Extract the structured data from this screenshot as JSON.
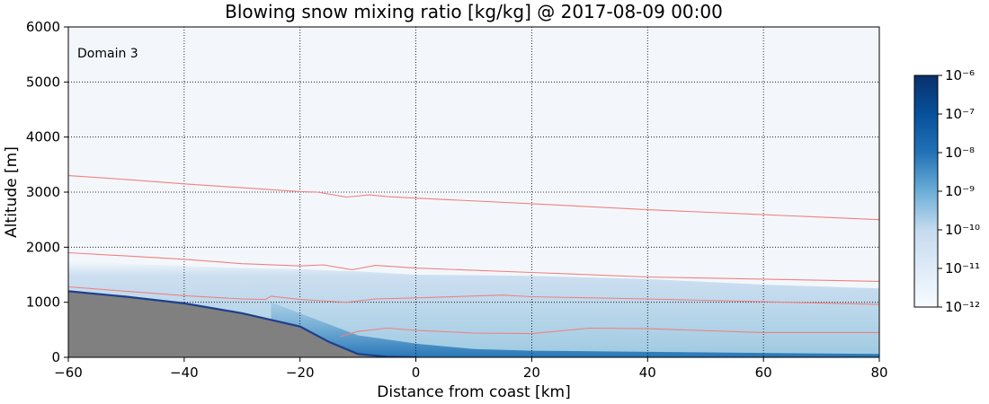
{
  "chart_data": {
    "type": "heatmap",
    "title": "Blowing snow mixing ratio [kg/kg] @   2017-08-09  00:00",
    "xlabel": "Distance from coast [km]",
    "ylabel": "Altitude [m]",
    "xlim": [
      -60,
      80
    ],
    "ylim": [
      0,
      6000
    ],
    "x_ticks": [
      -60,
      -40,
      -20,
      0,
      20,
      40,
      60,
      80
    ],
    "x_tick_labels": [
      "−60",
      "−40",
      "−20",
      "0",
      "20",
      "40",
      "60",
      "80"
    ],
    "y_ticks": [
      0,
      1000,
      2000,
      3000,
      4000,
      5000,
      6000
    ],
    "y_tick_labels": [
      "0",
      "1000",
      "2000",
      "3000",
      "4000",
      "5000",
      "6000"
    ],
    "grid": true,
    "annotation": "Domain 3",
    "colorbar": {
      "scale": "log",
      "min": 1e-12,
      "max": 1e-06,
      "exponents": [
        -12,
        -11,
        -10,
        -9,
        -8,
        -7,
        -6
      ],
      "tick_labels": [
        "10⁻¹²",
        "10⁻¹¹",
        "10⁻¹⁰",
        "10⁻⁹",
        "10⁻⁸",
        "10⁻⁷",
        "10⁻⁶"
      ],
      "color_low": "#f7fbff",
      "color_high": "#08306b"
    },
    "terrain": {
      "color": "#808080",
      "points": [
        [
          -60,
          1200
        ],
        [
          -50,
          1100
        ],
        [
          -40,
          980
        ],
        [
          -30,
          800
        ],
        [
          -20,
          560
        ],
        [
          -15,
          280
        ],
        [
          -10,
          60
        ],
        [
          -5,
          10
        ],
        [
          0,
          0
        ]
      ]
    },
    "snow_layer_top": [
      [
        -60,
        1750
      ],
      [
        -50,
        1700
      ],
      [
        -40,
        1660
      ],
      [
        -30,
        1620
      ],
      [
        -20,
        1600
      ],
      [
        -10,
        1560
      ],
      [
        0,
        1500
      ],
      [
        20,
        1480
      ],
      [
        40,
        1420
      ],
      [
        60,
        1320
      ],
      [
        80,
        1250
      ]
    ],
    "concentration_core": {
      "points": [
        [
          -25,
          1000
        ],
        [
          -15,
          600
        ],
        [
          -10,
          400
        ],
        [
          0,
          250
        ],
        [
          10,
          150
        ],
        [
          20,
          120
        ],
        [
          40,
          100
        ],
        [
          60,
          80
        ],
        [
          80,
          60
        ]
      ],
      "peak_exponent": -7.5
    },
    "contour_color": "#f08080",
    "contours": [
      [
        [
          -60,
          3300
        ],
        [
          -50,
          3230
        ],
        [
          -40,
          3150
        ],
        [
          -30,
          3080
        ],
        [
          -20,
          3010
        ],
        [
          -17,
          3000
        ],
        [
          -12,
          2910
        ],
        [
          -8,
          2950
        ],
        [
          -5,
          2920
        ],
        [
          0,
          2890
        ],
        [
          20,
          2790
        ],
        [
          40,
          2680
        ],
        [
          60,
          2590
        ],
        [
          80,
          2500
        ]
      ],
      [
        [
          -60,
          1900
        ],
        [
          -50,
          1840
        ],
        [
          -40,
          1780
        ],
        [
          -30,
          1700
        ],
        [
          -20,
          1660
        ],
        [
          -16,
          1680
        ],
        [
          -11,
          1590
        ],
        [
          -7,
          1670
        ],
        [
          0,
          1620
        ],
        [
          20,
          1540
        ],
        [
          40,
          1460
        ],
        [
          60,
          1420
        ],
        [
          80,
          1380
        ]
      ],
      [
        [
          -60,
          1280
        ],
        [
          -50,
          1200
        ],
        [
          -40,
          1120
        ],
        [
          -30,
          1060
        ],
        [
          -26,
          1050
        ],
        [
          -25,
          1110
        ],
        [
          -20,
          1050
        ],
        [
          -12,
          1000
        ],
        [
          -7,
          1060
        ],
        [
          0,
          1080
        ],
        [
          15,
          1130
        ],
        [
          20,
          1100
        ],
        [
          40,
          1060
        ],
        [
          60,
          1010
        ],
        [
          80,
          960
        ]
      ],
      [
        [
          -13,
          380
        ],
        [
          -10,
          470
        ],
        [
          -5,
          530
        ],
        [
          0,
          490
        ],
        [
          10,
          440
        ],
        [
          20,
          430
        ],
        [
          30,
          530
        ],
        [
          40,
          520
        ],
        [
          60,
          450
        ],
        [
          80,
          450
        ]
      ]
    ]
  }
}
